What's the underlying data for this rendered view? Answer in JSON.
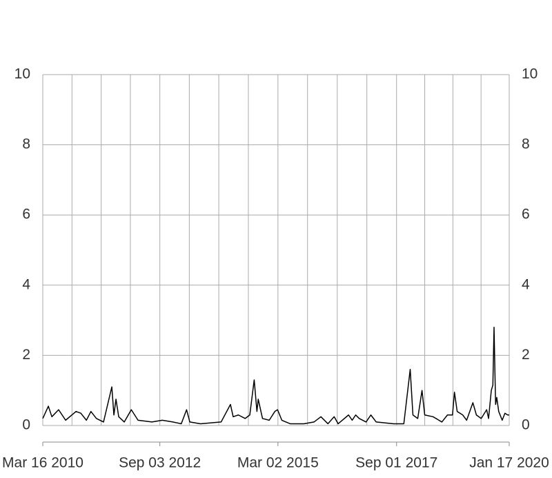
{
  "chart_data": {
    "type": "line",
    "x": [
      "2010-03-16",
      "2010-04-28",
      "2010-05-25",
      "2010-07-16",
      "2010-09-08",
      "2010-11-27",
      "2011-01-03",
      "2011-02-15",
      "2011-03-22",
      "2011-05-03",
      "2011-06-27",
      "2011-08-30",
      "2011-09-15",
      "2011-10-01",
      "2011-10-22",
      "2011-12-04",
      "2012-01-27",
      "2012-03-19",
      "2012-07-04",
      "2012-09-22",
      "2012-12-12",
      "2013-02-15",
      "2013-03-28",
      "2013-04-22",
      "2013-07-13",
      "2013-12-19",
      "2014-03-01",
      "2014-03-22",
      "2014-05-01",
      "2014-06-22",
      "2014-07-28",
      "2014-08-31",
      "2014-09-21",
      "2014-10-01",
      "2014-11-03",
      "2014-12-25",
      "2015-02-06",
      "2015-02-27",
      "2015-04-01",
      "2015-06-04",
      "2015-09-18",
      "2015-12-05",
      "2016-01-27",
      "2016-03-21",
      "2016-05-08",
      "2016-06-08",
      "2016-08-27",
      "2016-09-24",
      "2016-10-21",
      "2016-11-17",
      "2017-01-09",
      "2017-02-15",
      "2017-03-28",
      "2017-08-09",
      "2017-10-27",
      "2017-12-15",
      "2018-01-05",
      "2018-02-11",
      "2018-03-16",
      "2018-04-06",
      "2018-06-09",
      "2018-08-16",
      "2018-09-28",
      "2018-11-06",
      "2018-11-21",
      "2018-12-12",
      "2019-01-24",
      "2019-02-23",
      "2019-04-12",
      "2019-05-09",
      "2019-06-15",
      "2019-07-27",
      "2019-08-11",
      "2019-09-01",
      "2019-09-13",
      "2019-09-22",
      "2019-10-04",
      "2019-10-13",
      "2019-10-28",
      "2019-11-24",
      "2019-12-15",
      "2020-01-05",
      "2020-01-17"
    ],
    "series": [
      {
        "color": "#000000",
        "values": [
          0.2,
          0.55,
          0.25,
          0.45,
          0.15,
          0.4,
          0.35,
          0.15,
          0.4,
          0.2,
          0.1,
          1.1,
          0.3,
          0.75,
          0.25,
          0.1,
          0.45,
          0.15,
          0.1,
          0.15,
          0.1,
          0.05,
          0.45,
          0.1,
          0.05,
          0.1,
          0.6,
          0.25,
          0.3,
          0.2,
          0.3,
          1.3,
          0.4,
          0.75,
          0.2,
          0.15,
          0.4,
          0.45,
          0.15,
          0.05,
          0.05,
          0.1,
          0.25,
          0.05,
          0.25,
          0.05,
          0.3,
          0.15,
          0.3,
          0.2,
          0.1,
          0.3,
          0.1,
          0.05,
          0.05,
          1.6,
          0.3,
          0.2,
          1.0,
          0.3,
          0.25,
          0.1,
          0.3,
          0.3,
          0.95,
          0.4,
          0.3,
          0.15,
          0.65,
          0.3,
          0.2,
          0.45,
          0.2,
          1.0,
          1.15,
          2.8,
          0.6,
          0.8,
          0.4,
          0.15,
          0.35,
          0.3,
          0.3
        ]
      }
    ],
    "xlim": [
      "2010-03-16",
      "2020-01-17"
    ],
    "xticks": [
      {
        "value": "2010-03-16",
        "label": "Mar 16 2010"
      },
      {
        "value": "2012-09-03",
        "label": "Sep 03 2012"
      },
      {
        "value": "2015-03-02",
        "label": "Mar 02 2015"
      },
      {
        "value": "2017-09-01",
        "label": "Sep 01 2017"
      },
      {
        "value": "2020-01-17",
        "label": "Jan 17 2020"
      }
    ],
    "xgrid": [
      "2010-10-27",
      "2011-06-09",
      "2012-01-20",
      "2013-04-18",
      "2013-12-01",
      "2014-07-17",
      "2015-10-16",
      "2016-06-01",
      "2017-01-15",
      "2018-04-06",
      "2018-11-09",
      "2019-06-14"
    ],
    "ylim": [
      0,
      10
    ],
    "yticks": [
      0,
      2,
      4,
      6,
      8,
      10
    ],
    "y2lim": [
      0,
      10
    ],
    "y2ticks": [
      0,
      2,
      4,
      6,
      8,
      10
    ],
    "grid": true
  }
}
